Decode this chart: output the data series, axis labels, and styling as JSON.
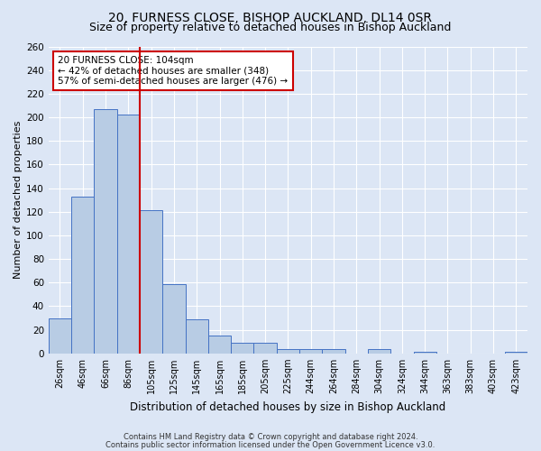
{
  "title": "20, FURNESS CLOSE, BISHOP AUCKLAND, DL14 0SR",
  "subtitle": "Size of property relative to detached houses in Bishop Auckland",
  "xlabel": "Distribution of detached houses by size in Bishop Auckland",
  "ylabel": "Number of detached properties",
  "bar_labels": [
    "26sqm",
    "46sqm",
    "66sqm",
    "86sqm",
    "105sqm",
    "125sqm",
    "145sqm",
    "165sqm",
    "185sqm",
    "205sqm",
    "225sqm",
    "244sqm",
    "264sqm",
    "284sqm",
    "304sqm",
    "324sqm",
    "344sqm",
    "363sqm",
    "383sqm",
    "403sqm",
    "423sqm"
  ],
  "bar_heights": [
    30,
    133,
    207,
    202,
    121,
    59,
    29,
    15,
    9,
    9,
    4,
    4,
    4,
    0,
    4,
    0,
    1,
    0,
    0,
    0,
    1
  ],
  "bar_color": "#b8cce4",
  "bar_edge_color": "#4472c4",
  "background_color": "#dce6f5",
  "grid_color": "#ffffff",
  "vline_color": "#cc0000",
  "annotation_title": "20 FURNESS CLOSE: 104sqm",
  "annotation_line1": "← 42% of detached houses are smaller (348)",
  "annotation_line2": "57% of semi-detached houses are larger (476) →",
  "annotation_box_color": "#ffffff",
  "annotation_box_edge": "#cc0000",
  "ylim": [
    0,
    260
  ],
  "yticks": [
    0,
    20,
    40,
    60,
    80,
    100,
    120,
    140,
    160,
    180,
    200,
    220,
    240,
    260
  ],
  "footer1": "Contains HM Land Registry data © Crown copyright and database right 2024.",
  "footer2": "Contains public sector information licensed under the Open Government Licence v3.0.",
  "title_fontsize": 10,
  "subtitle_fontsize": 9
}
